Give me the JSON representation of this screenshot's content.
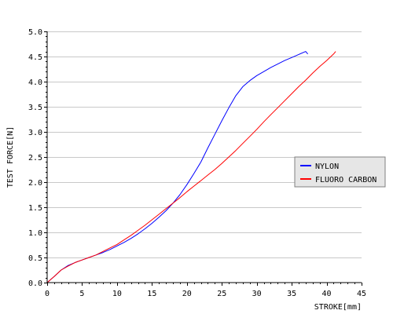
{
  "chart_data": {
    "type": "line",
    "title": "",
    "xlabel": "STROKE[mm]",
    "ylabel": "TEST FORCE[N]",
    "xlim": [
      0,
      45
    ],
    "ylim": [
      0,
      5
    ],
    "x_ticks": [
      "0",
      "5",
      "10",
      "15",
      "20",
      "25",
      "30",
      "35",
      "40",
      "45"
    ],
    "y_ticks": [
      "0.0",
      "0.5",
      "1.0",
      "1.5",
      "2.0",
      "2.5",
      "3.0",
      "3.5",
      "4.0",
      "4.5",
      "5.0"
    ],
    "grid": "horizontal",
    "legend_position": "right",
    "series": [
      {
        "name": "NYLON",
        "color": "#0000ff",
        "points": [
          [
            0,
            0
          ],
          [
            1,
            0.12
          ],
          [
            2,
            0.25
          ],
          [
            3,
            0.34
          ],
          [
            4,
            0.4
          ],
          [
            5,
            0.45
          ],
          [
            6,
            0.5
          ],
          [
            7,
            0.55
          ],
          [
            8,
            0.6
          ],
          [
            9,
            0.66
          ],
          [
            10,
            0.73
          ],
          [
            11,
            0.8
          ],
          [
            12,
            0.88
          ],
          [
            13,
            0.97
          ],
          [
            14,
            1.07
          ],
          [
            15,
            1.18
          ],
          [
            16,
            1.3
          ],
          [
            17,
            1.43
          ],
          [
            18,
            1.58
          ],
          [
            19,
            1.75
          ],
          [
            20,
            1.95
          ],
          [
            21,
            2.17
          ],
          [
            22,
            2.4
          ],
          [
            23,
            2.68
          ],
          [
            24,
            2.95
          ],
          [
            25,
            3.22
          ],
          [
            26,
            3.48
          ],
          [
            27,
            3.72
          ],
          [
            28,
            3.9
          ],
          [
            29,
            4.02
          ],
          [
            30,
            4.12
          ],
          [
            31,
            4.2
          ],
          [
            32,
            4.28
          ],
          [
            33,
            4.35
          ],
          [
            34,
            4.42
          ],
          [
            35,
            4.48
          ],
          [
            36,
            4.54
          ],
          [
            37,
            4.6
          ],
          [
            37.3,
            4.55
          ]
        ]
      },
      {
        "name": "FLUORO CARBON",
        "color": "#ff0000",
        "points": [
          [
            0,
            0
          ],
          [
            1,
            0.12
          ],
          [
            2,
            0.25
          ],
          [
            3,
            0.33
          ],
          [
            4,
            0.4
          ],
          [
            5,
            0.45
          ],
          [
            6,
            0.5
          ],
          [
            7,
            0.55
          ],
          [
            8,
            0.62
          ],
          [
            9,
            0.69
          ],
          [
            10,
            0.76
          ],
          [
            11,
            0.85
          ],
          [
            12,
            0.94
          ],
          [
            13,
            1.04
          ],
          [
            14,
            1.14
          ],
          [
            15,
            1.25
          ],
          [
            16,
            1.36
          ],
          [
            17,
            1.47
          ],
          [
            18,
            1.58
          ],
          [
            19,
            1.69
          ],
          [
            20,
            1.81
          ],
          [
            21,
            1.92
          ],
          [
            22,
            2.03
          ],
          [
            23,
            2.14
          ],
          [
            24,
            2.25
          ],
          [
            25,
            2.37
          ],
          [
            26,
            2.5
          ],
          [
            27,
            2.63
          ],
          [
            28,
            2.77
          ],
          [
            29,
            2.91
          ],
          [
            30,
            3.05
          ],
          [
            31,
            3.2
          ],
          [
            32,
            3.34
          ],
          [
            33,
            3.48
          ],
          [
            34,
            3.62
          ],
          [
            35,
            3.76
          ],
          [
            36,
            3.9
          ],
          [
            37,
            4.03
          ],
          [
            38,
            4.17
          ],
          [
            39,
            4.3
          ],
          [
            40,
            4.42
          ],
          [
            41,
            4.55
          ],
          [
            41.3,
            4.6
          ]
        ]
      }
    ]
  },
  "colors": {
    "axis": "#000000",
    "grid": "#c8c8c8",
    "legend_bg": "#e6e6e6",
    "legend_border": "#808080"
  }
}
